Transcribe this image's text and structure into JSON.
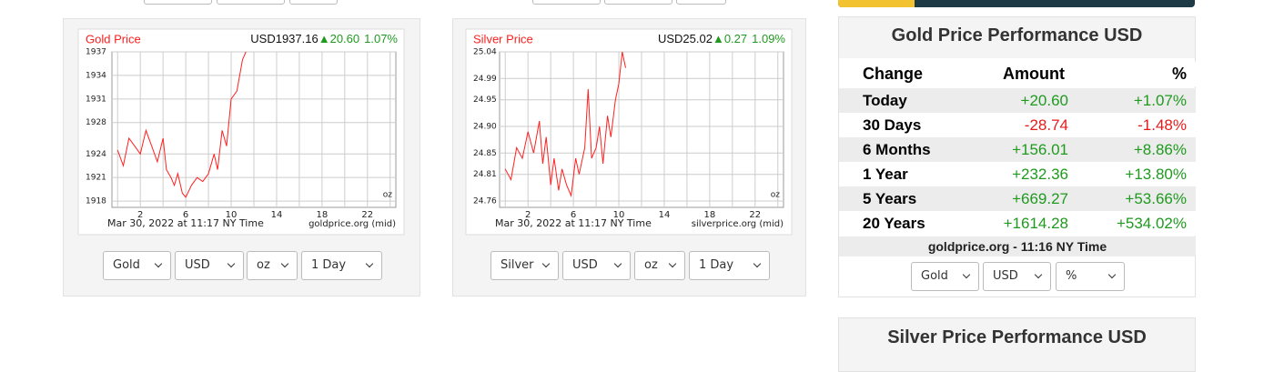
{
  "charts": [
    {
      "title": "Gold Price",
      "price": "USD1937.16",
      "change": "▲20.60",
      "percent": "1.07%",
      "unit": "oz",
      "date": "Mar 30, 2022 at 11:17 NY Time",
      "source": "goldprice.org (mid)",
      "color": "#ff2020",
      "x": [
        0,
        0.5,
        1,
        1.5,
        2,
        2.5,
        3,
        3.5,
        4,
        4.3,
        4.7,
        5,
        5.3,
        5.7,
        6,
        6.5,
        7,
        7.5,
        8,
        8.5,
        8.8,
        9.2,
        9.6,
        10,
        10.5,
        11,
        11.3
      ],
      "values": [
        1924.5,
        1922.5,
        1926,
        1925,
        1924,
        1927,
        1925,
        1923,
        1926,
        1922,
        1921,
        1920,
        1921.5,
        1919,
        1918.5,
        1920,
        1921,
        1920.5,
        1921.5,
        1924,
        1922,
        1927,
        1925,
        1931,
        1932,
        1936,
        1937.5
      ],
      "xlim": [
        -0.5,
        24.5
      ],
      "ylim": [
        1917.2,
        1937
      ],
      "xticks": [
        2,
        6,
        10,
        14,
        18,
        22
      ],
      "yticks": [
        1937,
        1934,
        1931,
        1928,
        1924,
        1921,
        1918
      ],
      "selects": [
        "Gold",
        "USD",
        "oz",
        "1 Day"
      ]
    },
    {
      "title": "Silver Price",
      "price": "USD25.02",
      "change": "▲0.27",
      "percent": "1.09%",
      "unit": "oz",
      "date": "Mar 30, 2022 at 11:17 NY Time",
      "source": "silverprice.org (mid)",
      "color": "#ff2020",
      "x": [
        0,
        0.5,
        1,
        1.5,
        2,
        2.5,
        3,
        3.3,
        3.6,
        4,
        4.3,
        4.7,
        5,
        5.4,
        5.8,
        6.2,
        6.5,
        7,
        7.3,
        7.6,
        8,
        8.3,
        8.6,
        9,
        9.3,
        9.7,
        10,
        10.3,
        10.6
      ],
      "values": [
        24.82,
        24.8,
        24.86,
        24.84,
        24.89,
        24.85,
        24.91,
        24.83,
        24.88,
        24.79,
        24.84,
        24.78,
        24.82,
        24.79,
        24.77,
        24.84,
        24.81,
        24.86,
        24.97,
        24.84,
        24.86,
        24.9,
        24.83,
        24.92,
        24.88,
        24.95,
        24.98,
        25.05,
        25.01
      ],
      "xlim": [
        -0.5,
        24.5
      ],
      "ylim": [
        24.748,
        25.04
      ],
      "xticks": [
        2,
        6,
        10,
        14,
        18,
        22
      ],
      "yticks": [
        25.04,
        24.99,
        24.95,
        {
          "value": 24.9,
          "label": "24.90"
        },
        24.85,
        24.81,
        24.76
      ],
      "selects": [
        "Silver",
        "USD",
        "oz",
        "1 Day"
      ]
    }
  ],
  "performance": {
    "title": "Gold Price Performance USD",
    "headers": [
      "Change",
      "Amount",
      "%"
    ],
    "rows": [
      [
        "Today",
        "+20.60",
        "+1.07%"
      ],
      [
        "30 Days",
        "-28.74",
        "-1.48%"
      ],
      [
        "6 Months",
        "+156.01",
        "+8.86%"
      ],
      [
        "1 Year",
        "+232.36",
        "+13.80%"
      ],
      [
        "5 Years",
        "+669.27",
        "+53.66%"
      ],
      [
        "20 Years",
        "+1614.28",
        "+534.02%"
      ]
    ],
    "footer": "goldprice.org - 11:16 NY Time",
    "selects": [
      "Gold",
      "USD",
      "%"
    ]
  },
  "silver_performance": {
    "title": "Silver Price Performance USD"
  }
}
